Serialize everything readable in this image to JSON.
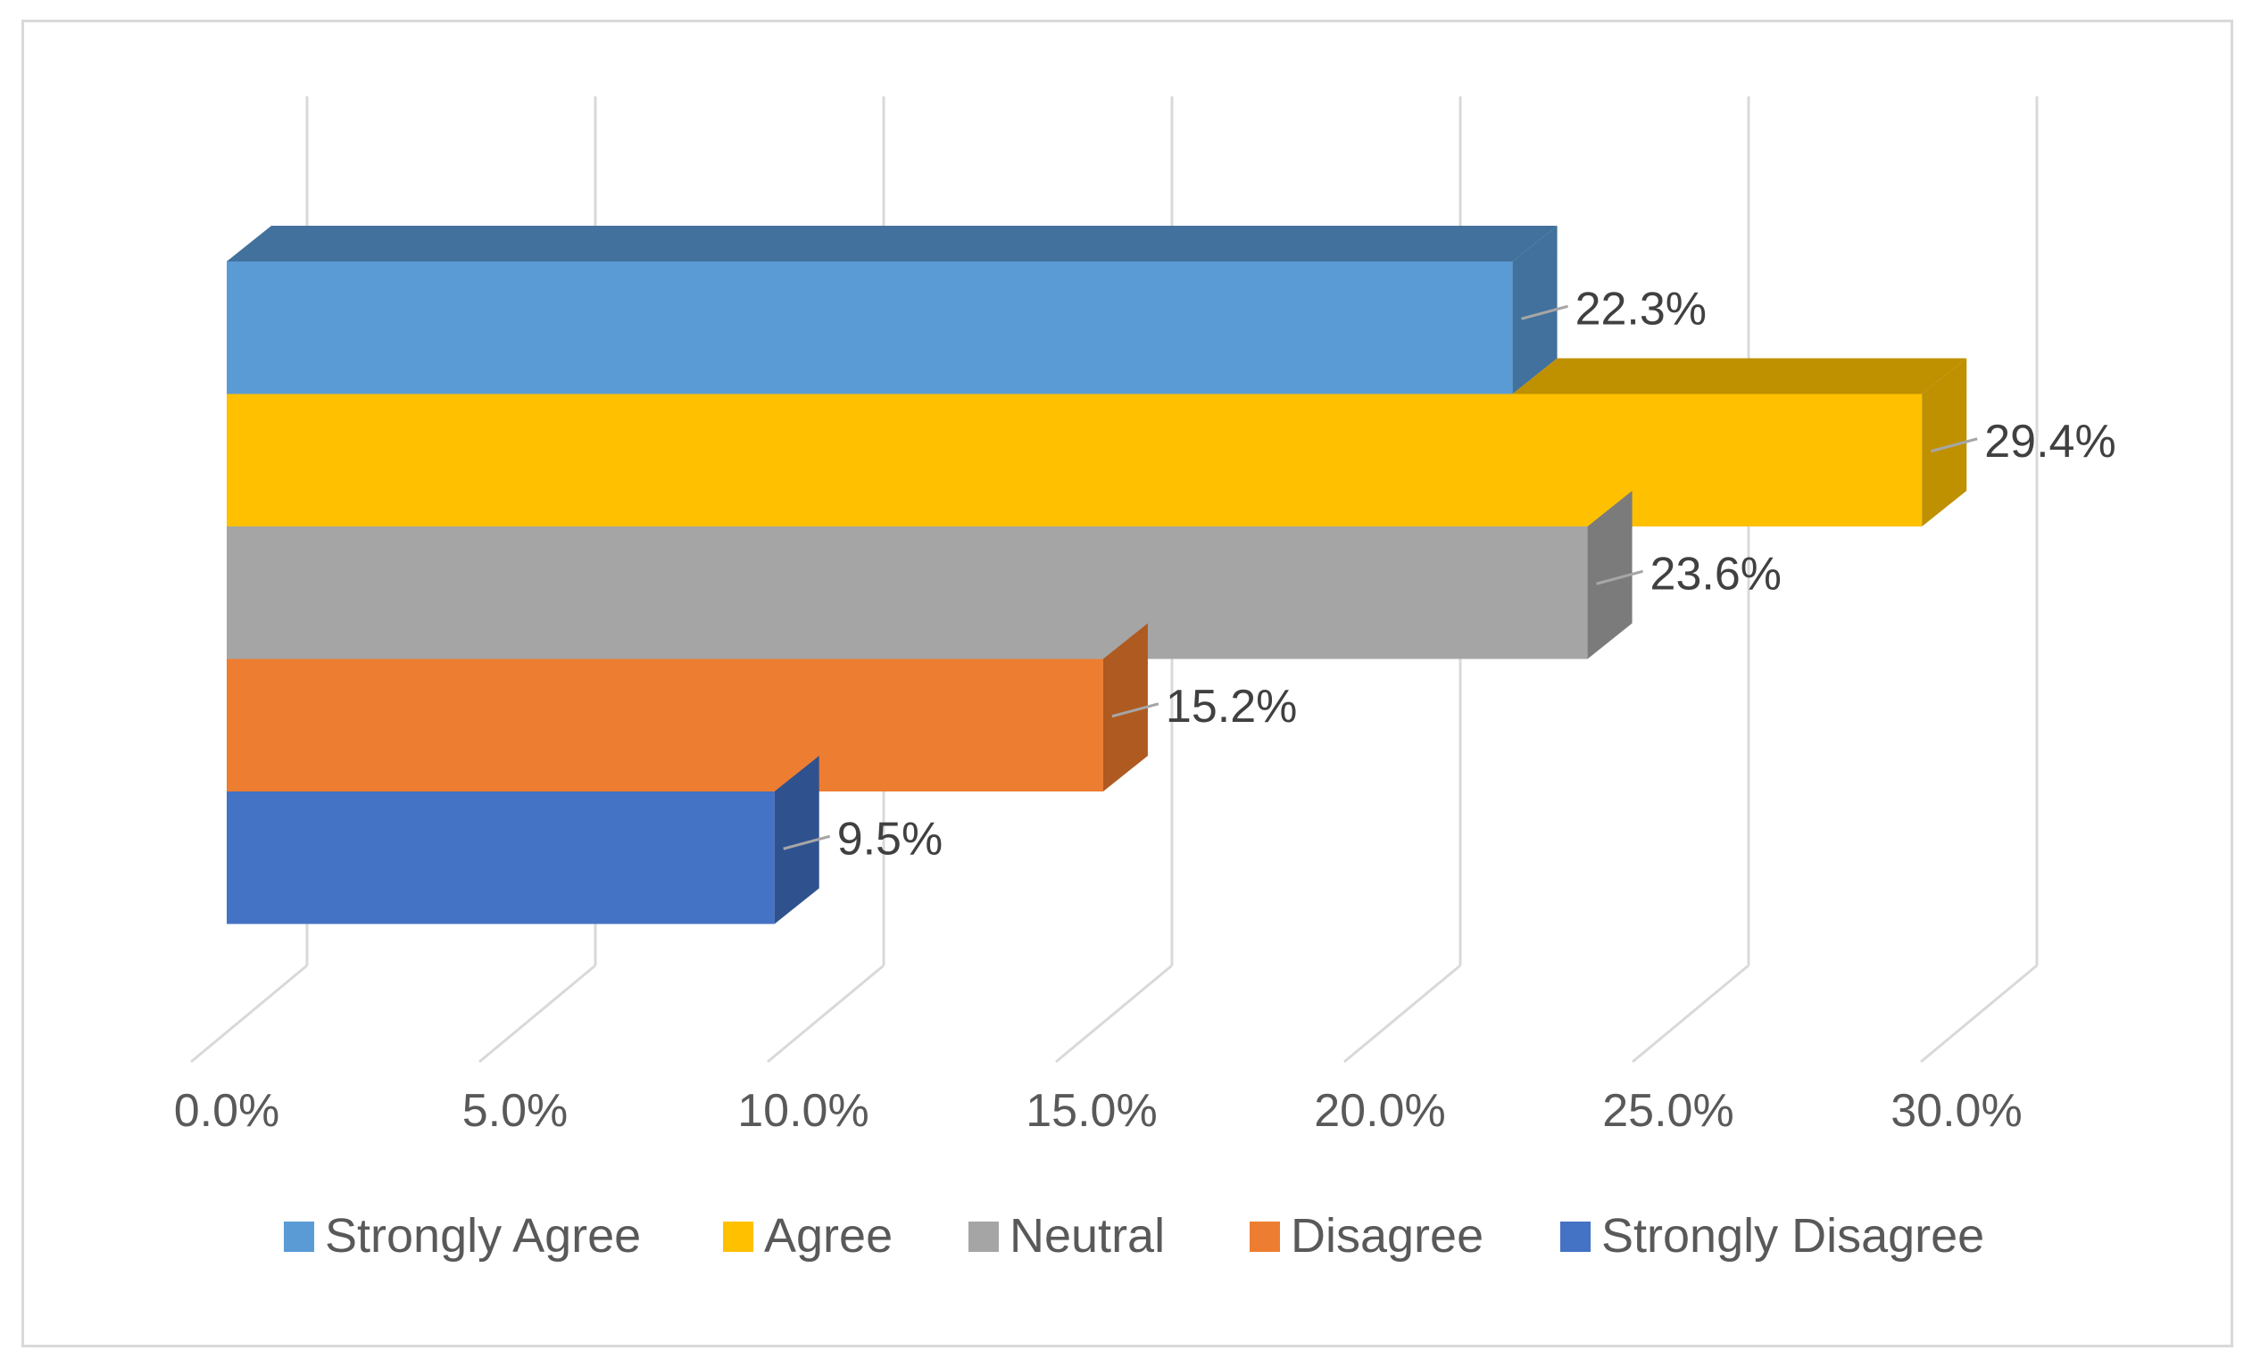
{
  "chart_data": {
    "type": "bar",
    "orientation": "horizontal",
    "style": "3d-clustered",
    "title": "",
    "xlabel": "",
    "ylabel": "",
    "xlim": [
      0,
      30
    ],
    "x_ticks": [
      "0.0%",
      "5.0%",
      "10.0%",
      "15.0%",
      "20.0%",
      "25.0%",
      "30.0%"
    ],
    "x_tick_values": [
      0,
      5,
      10,
      15,
      20,
      25,
      30
    ],
    "grid": true,
    "legend_position": "bottom",
    "series": [
      {
        "name": "Strongly Agree",
        "value": 22.3,
        "label": "22.3%",
        "color": "#5B9BD5",
        "side_color": "#41719C"
      },
      {
        "name": "Agree",
        "value": 29.4,
        "label": "29.4%",
        "color": "#FFC000",
        "side_color": "#BF9000"
      },
      {
        "name": "Neutral",
        "value": 23.6,
        "label": "23.6%",
        "color": "#A5A5A5",
        "side_color": "#7B7B7B"
      },
      {
        "name": "Disagree",
        "value": 15.2,
        "label": "15.2%",
        "color": "#ED7D31",
        "side_color": "#AE5A21"
      },
      {
        "name": "Strongly Disagree",
        "value": 9.5,
        "label": "9.5%",
        "color": "#4472C4",
        "side_color": "#2F528F"
      }
    ]
  }
}
